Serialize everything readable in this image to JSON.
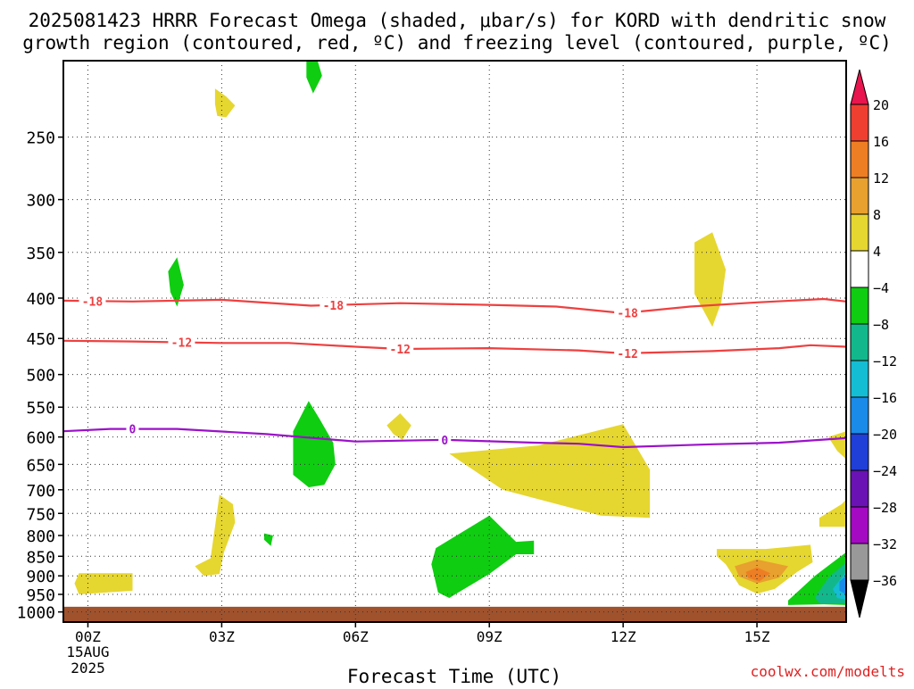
{
  "title_line1": "2025081423 HRRR Forecast Omega (shaded, μbar/s) for KORD with dendritic snow",
  "title_line2": "growth region (contoured, red, ºC) and freezing level (contoured, purple, ºC)",
  "watermark": "coolwx.com/modelts",
  "chart_data": {
    "type": "heatmap",
    "xlabel": "Forecast Time (UTC)",
    "x_ticks": [
      {
        "h": 0,
        "label": "00Z",
        "date_line1": "15AUG",
        "date_line2": "2025"
      },
      {
        "h": 3,
        "label": "03Z"
      },
      {
        "h": 6,
        "label": "06Z"
      },
      {
        "h": 9,
        "label": "09Z"
      },
      {
        "h": 12,
        "label": "12Z"
      },
      {
        "h": 15,
        "label": "15Z"
      }
    ],
    "x_range_hours": [
      -0.55,
      17
    ],
    "y_ticks": [
      250,
      300,
      350,
      400,
      450,
      500,
      550,
      600,
      650,
      700,
      750,
      800,
      850,
      900,
      950,
      1000
    ],
    "y_range_mb": [
      200,
      1030
    ],
    "y_scale": "log",
    "grid": "dotted",
    "ground_color": "#a0522d",
    "ground_from_mb": 985,
    "colorbar": {
      "labels": [
        "20",
        "16",
        "12",
        "8",
        "4",
        "−4",
        "−8",
        "−12",
        "−16",
        "−20",
        "−24",
        "−28",
        "−32",
        "−36"
      ],
      "colors": [
        "#e8154e",
        "#ef3f30",
        "#ee7e24",
        "#e8a02f",
        "#e6d630",
        "#ffffff",
        "#0fcd11",
        "#12b88b",
        "#14bdd4",
        "#1a8be8",
        "#1f3fd8",
        "#6a12b3",
        "#a40ac2",
        "#999999",
        "#000000"
      ]
    },
    "omega_regions": [
      {
        "level": 4,
        "color": "#e6d630",
        "points": [
          [
            2.85,
            217
          ],
          [
            3.1,
            222
          ],
          [
            3.3,
            228
          ],
          [
            3.1,
            236
          ],
          [
            2.9,
            235
          ],
          [
            2.85,
            227
          ]
        ]
      },
      {
        "level": -4,
        "color": "#0fcd11",
        "points": [
          [
            4.9,
            200
          ],
          [
            5.15,
            200
          ],
          [
            5.25,
            209
          ],
          [
            5.05,
            220
          ],
          [
            4.9,
            210
          ]
        ]
      },
      {
        "level": -4,
        "color": "#0fcd11",
        "points": [
          [
            1.8,
            370
          ],
          [
            2.0,
            355
          ],
          [
            2.15,
            385
          ],
          [
            2.0,
            410
          ],
          [
            1.85,
            393
          ]
        ]
      },
      {
        "level": 4,
        "color": "#e6d630",
        "points": [
          [
            13.6,
            340
          ],
          [
            14.0,
            330
          ],
          [
            14.3,
            368
          ],
          [
            14.2,
            405
          ],
          [
            14.0,
            435
          ],
          [
            13.6,
            395
          ]
        ]
      },
      {
        "level": -4,
        "color": "#0fcd11",
        "points": [
          [
            4.6,
            590
          ],
          [
            4.95,
            540
          ],
          [
            5.2,
            570
          ],
          [
            5.5,
            610
          ],
          [
            5.55,
            650
          ],
          [
            5.3,
            690
          ],
          [
            4.95,
            695
          ],
          [
            4.6,
            670
          ]
        ]
      },
      {
        "level": 4,
        "color": "#e6d630",
        "points": [
          [
            6.7,
            580
          ],
          [
            7.0,
            560
          ],
          [
            7.25,
            580
          ],
          [
            7.05,
            605
          ],
          [
            6.85,
            595
          ]
        ]
      },
      {
        "level": 4,
        "color": "#e6d630",
        "points": [
          [
            10.1,
            615
          ],
          [
            12.0,
            578
          ],
          [
            12.6,
            660
          ],
          [
            12.6,
            760
          ],
          [
            11.5,
            755
          ],
          [
            9.3,
            700
          ],
          [
            8.1,
            630
          ]
        ]
      },
      {
        "level": 4,
        "color": "#e6d630",
        "points": [
          [
            16.6,
            600
          ],
          [
            17,
            590
          ],
          [
            17,
            640
          ],
          [
            16.8,
            625
          ]
        ]
      },
      {
        "level": 4,
        "color": "#e6d630",
        "points": [
          [
            16.4,
            760
          ],
          [
            16.9,
            730
          ],
          [
            17,
            720
          ],
          [
            17,
            780
          ],
          [
            16.4,
            780
          ]
        ]
      },
      {
        "level": 4,
        "color": "#e6d630",
        "points": [
          [
            2.95,
            710
          ],
          [
            3.25,
            730
          ],
          [
            3.3,
            770
          ],
          [
            3.05,
            840
          ],
          [
            2.95,
            895
          ],
          [
            2.6,
            900
          ],
          [
            2.4,
            875
          ],
          [
            2.75,
            855
          ]
        ]
      },
      {
        "level": -4,
        "color": "#0fcd11",
        "points": [
          [
            3.95,
            795
          ],
          [
            4.15,
            800
          ],
          [
            4.1,
            825
          ],
          [
            3.95,
            810
          ]
        ]
      },
      {
        "level": 4,
        "color": "#e6d630",
        "points": [
          [
            -0.2,
            893
          ],
          [
            1.0,
            893
          ],
          [
            1.0,
            940
          ],
          [
            -0.2,
            950
          ],
          [
            -0.3,
            920
          ]
        ]
      },
      {
        "level": -4,
        "color": "#0fcd11",
        "points": [
          [
            7.8,
            830
          ],
          [
            9.0,
            755
          ],
          [
            9.6,
            815
          ],
          [
            10.0,
            812
          ],
          [
            10.0,
            845
          ],
          [
            9.6,
            845
          ],
          [
            9.0,
            895
          ],
          [
            8.1,
            960
          ],
          [
            7.85,
            945
          ],
          [
            7.7,
            870
          ]
        ]
      },
      {
        "level": 4,
        "color": "#e6d630",
        "points": [
          [
            14.1,
            832
          ],
          [
            15.2,
            832
          ],
          [
            16.2,
            822
          ],
          [
            16.25,
            865
          ],
          [
            15.9,
            890
          ],
          [
            15.4,
            935
          ],
          [
            15.0,
            948
          ],
          [
            14.6,
            925
          ],
          [
            14.3,
            870
          ],
          [
            14.1,
            850
          ]
        ]
      },
      {
        "level": 8,
        "color": "#e8a02f",
        "points": [
          [
            14.5,
            875
          ],
          [
            15.0,
            858
          ],
          [
            15.7,
            875
          ],
          [
            15.5,
            905
          ],
          [
            15.0,
            920
          ],
          [
            14.6,
            902
          ]
        ]
      },
      {
        "level": 12,
        "color": "#ee7e24",
        "points": [
          [
            14.75,
            890
          ],
          [
            15.0,
            878
          ],
          [
            15.3,
            893
          ],
          [
            15.05,
            915
          ],
          [
            14.8,
            905
          ]
        ]
      },
      {
        "level": -4,
        "color": "#0fcd11",
        "points": [
          [
            15.7,
            967
          ],
          [
            16.3,
            900
          ],
          [
            17,
            840
          ],
          [
            17,
            980
          ],
          [
            16.5,
            978
          ],
          [
            15.7,
            980
          ]
        ]
      },
      {
        "level": -8,
        "color": "#12b88b",
        "points": [
          [
            16.3,
            958
          ],
          [
            16.6,
            905
          ],
          [
            17,
            865
          ],
          [
            17,
            975
          ],
          [
            16.4,
            975
          ]
        ]
      },
      {
        "level": -12,
        "color": "#14bdd4",
        "points": [
          [
            16.7,
            935
          ],
          [
            17,
            890
          ],
          [
            17,
            965
          ],
          [
            16.8,
            960
          ]
        ]
      },
      {
        "level": -16,
        "color": "#1a8be8",
        "points": [
          [
            16.85,
            915
          ],
          [
            17,
            900
          ],
          [
            17,
            950
          ],
          [
            16.85,
            940
          ]
        ]
      }
    ],
    "contours": [
      {
        "name": "-18",
        "color": "#ee4040",
        "points": [
          [
            -0.55,
            403
          ],
          [
            1,
            404
          ],
          [
            3,
            402
          ],
          [
            5,
            409
          ],
          [
            7,
            406
          ],
          [
            9,
            408
          ],
          [
            10.5,
            410
          ],
          [
            12,
            418
          ],
          [
            13.5,
            410
          ],
          [
            15,
            405
          ],
          [
            16.5,
            401
          ],
          [
            17,
            404
          ]
        ],
        "labels": [
          {
            "x": 0.1,
            "text": "-18"
          },
          {
            "x": 5.5,
            "text": "-18"
          },
          {
            "x": 12.1,
            "text": "-18"
          }
        ]
      },
      {
        "name": "-12",
        "color": "#ee4040",
        "points": [
          [
            -0.55,
            453
          ],
          [
            1,
            454
          ],
          [
            3,
            456
          ],
          [
            4.5,
            456
          ],
          [
            6,
            461
          ],
          [
            7,
            464
          ],
          [
            9,
            463
          ],
          [
            11,
            466
          ],
          [
            12,
            470
          ],
          [
            14,
            467
          ],
          [
            15.5,
            463
          ],
          [
            16.2,
            459
          ],
          [
            17,
            461
          ]
        ],
        "labels": [
          {
            "x": 2.1,
            "text": "-12"
          },
          {
            "x": 7.0,
            "text": "-12"
          },
          {
            "x": 12.1,
            "text": "-12"
          }
        ]
      },
      {
        "name": "0",
        "color": "#9a12c8",
        "points": [
          [
            -0.55,
            590
          ],
          [
            0.5,
            586
          ],
          [
            2,
            586
          ],
          [
            4,
            595
          ],
          [
            6,
            608
          ],
          [
            8,
            605
          ],
          [
            10,
            610
          ],
          [
            11,
            612
          ],
          [
            12,
            618
          ],
          [
            14,
            613
          ],
          [
            15.5,
            610
          ],
          [
            17,
            602
          ]
        ],
        "labels": [
          {
            "x": 1.0,
            "text": "0"
          },
          {
            "x": 8.0,
            "text": "0"
          }
        ]
      }
    ]
  }
}
